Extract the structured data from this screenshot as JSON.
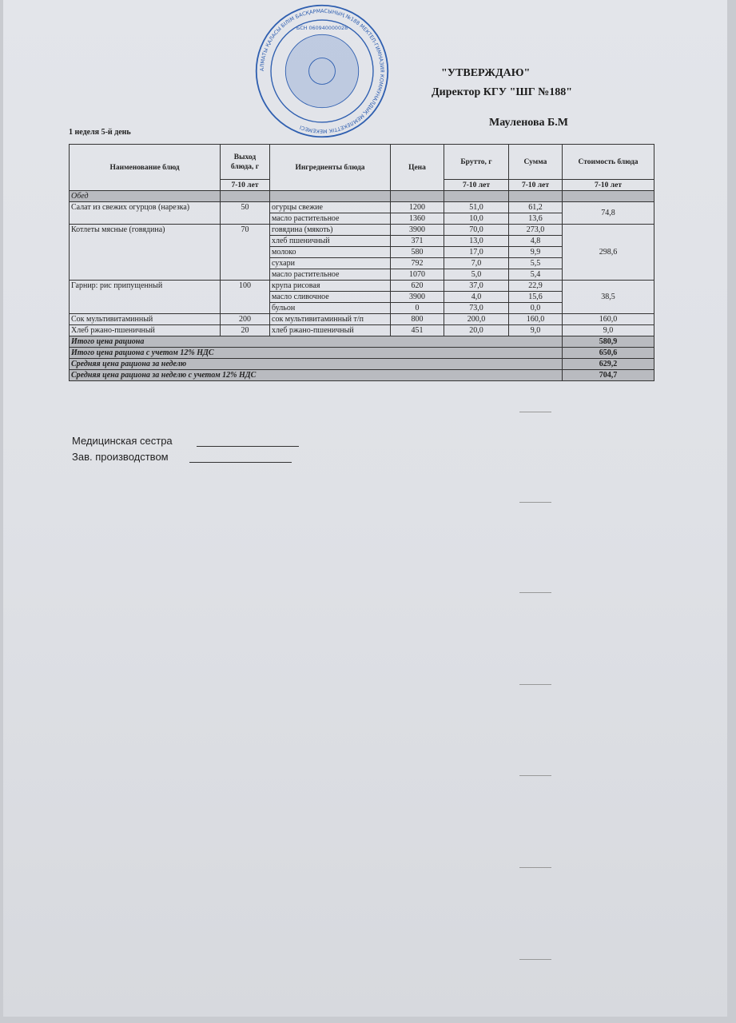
{
  "approval": {
    "line1": "\"УТВЕРЖДАЮ\"",
    "line2": "Директор КГУ \"ШГ №188\"",
    "line3": "Мауленова Б.М"
  },
  "stamp": {
    "text": "АЛМАТЫ ҚАЛАСЫ БІЛІМ БАСҚАРМАСЫНЫҢ №188 МЕКТЕП-ГИМНАЗИЯ КОММУНАЛДЫҚ МЕМЛЕКЕТТІК МЕКЕМЕСІ",
    "bin": "БСН 060940000028",
    "color": "#2f5fb0"
  },
  "week_label": "1 неделя 5-й день",
  "headers": {
    "name": "Наименование блюд",
    "yield": "Выход блюда, г",
    "ingredients": "Ингредиенты блюда",
    "price": "Цена",
    "brutto": "Брутто, г",
    "sum": "Сумма",
    "cost": "Стоимость блюда",
    "age": "7-10 лет"
  },
  "section": "Обед",
  "dishes": [
    {
      "name": "Салат из свежих огурцов (нарезка)",
      "yield": "50",
      "cost": "74,8",
      "ingredients": [
        {
          "name": "огурцы свежие",
          "price": "1200",
          "brutto": "51,0",
          "sum": "61,2"
        },
        {
          "name": "масло растительное",
          "price": "1360",
          "brutto": "10,0",
          "sum": "13,6"
        }
      ]
    },
    {
      "name": "Котлеты мясные (говядина)",
      "yield": "70",
      "cost": "298,6",
      "ingredients": [
        {
          "name": "говядина (мякоть)",
          "price": "3900",
          "brutto": "70,0",
          "sum": "273,0"
        },
        {
          "name": "хлеб пшеничный",
          "price": "371",
          "brutto": "13,0",
          "sum": "4,8"
        },
        {
          "name": "молоко",
          "price": "580",
          "brutto": "17,0",
          "sum": "9,9"
        },
        {
          "name": "сухари",
          "price": "792",
          "brutto": "7,0",
          "sum": "5,5"
        },
        {
          "name": "масло растительное",
          "price": "1070",
          "brutto": "5,0",
          "sum": "5,4"
        }
      ]
    },
    {
      "name": "Гарнир: рис припущенный",
      "yield": "100",
      "cost": "38,5",
      "ingredients": [
        {
          "name": "крупа рисовая",
          "price": "620",
          "brutto": "37,0",
          "sum": "22,9"
        },
        {
          "name": "масло сливочное",
          "price": "3900",
          "brutto": "4,0",
          "sum": "15,6"
        },
        {
          "name": "бульон",
          "price": "0",
          "brutto": "73,0",
          "sum": "0,0"
        }
      ]
    },
    {
      "name": "Сок мультивитаминный",
      "yield": "200",
      "cost": "160,0",
      "ingredients": [
        {
          "name": "сок мультивитаминный т/п",
          "price": "800",
          "brutto": "200,0",
          "sum": "160,0"
        }
      ]
    },
    {
      "name": "Хлеб ржано-пшеничный",
      "yield": "20",
      "cost": "9,0",
      "ingredients": [
        {
          "name": "хлеб ржано-пшеничный",
          "price": "451",
          "brutto": "20,0",
          "sum": "9,0"
        }
      ]
    }
  ],
  "totals": [
    {
      "label": "Итого цена рациона",
      "value": "580,9"
    },
    {
      "label": "Итого цена рациона с учетом 12% НДС",
      "value": "650,6"
    },
    {
      "label": "Средняя цена рациона за неделю",
      "value": "629,2"
    },
    {
      "label": "Средняя цена рациона за неделю с учетом 12% НДС",
      "value": "704,7"
    }
  ],
  "signatures": {
    "nurse": "Медицинская сестра",
    "production": "Зав. производством"
  }
}
